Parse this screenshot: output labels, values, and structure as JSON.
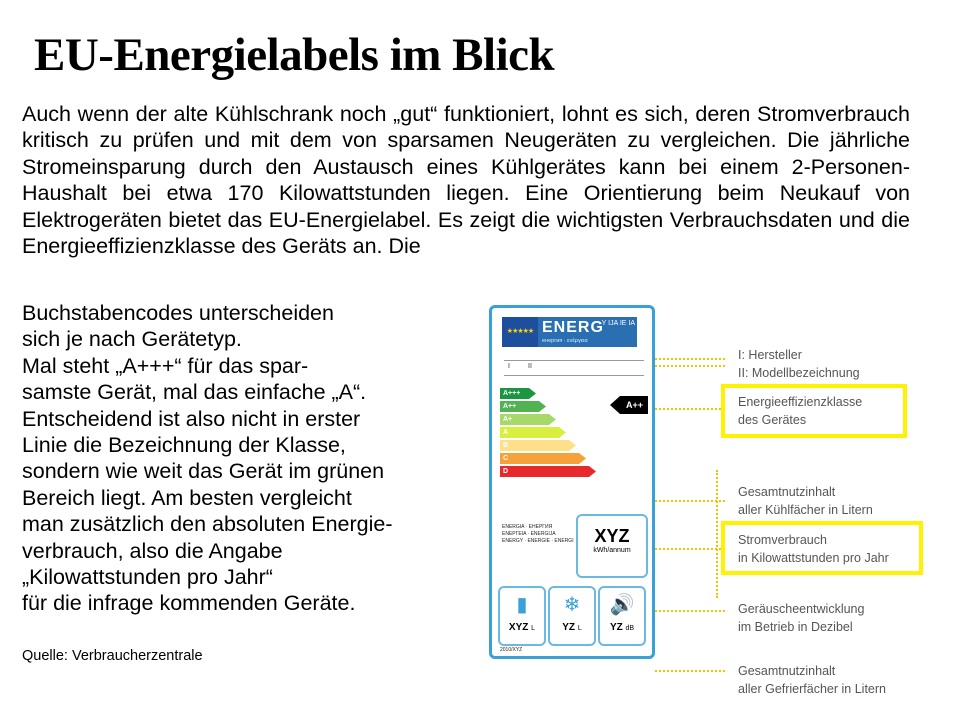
{
  "title": "EU-Energielabels im Blick",
  "paragraph_1": "Auch wenn der alte Kühlschrank noch „gut“ funktioniert, lohnt es sich, deren Stromverbrauch kritisch zu prüfen und mit dem von sparsamen Neugeräten zu vergleichen. Die jährliche Stromeinsparung durch den Austausch eines Kühlgerätes kann bei einem 2-Personen-Haushalt bei etwa 170 Kilowattstunden liegen. Eine Orientierung beim Neukauf von Elektrogeräten bietet das EU-Energielabel. Es zeigt die wichtigsten Verbrauchsdaten und die Energieeffizienzklasse des Geräts an. Die",
  "paragraph_2_lines": [
    "Buchstabencodes unterscheiden",
    "sich je nach Gerätetyp.",
    "Mal steht „A+++“ für das spar-",
    "samste Gerät, mal das einfache „A“.",
    "Entscheidend ist also nicht in erster",
    "Linie die Bezeichnung der Klasse,",
    "sondern wie weit das Gerät im grünen",
    "Bereich liegt.  Am besten vergleicht",
    "man zusätzlich den absoluten Energie-",
    "verbrauch, also die Angabe",
    "„Kilowattstunden pro Jahr“",
    "für die infrage kommenden Geräte."
  ],
  "source": "Quelle: Verbraucherzentrale",
  "label": {
    "brand": "ENERG",
    "brand_sub": "енергия · ενέργεια",
    "brand_marks": "Y IJA IE IA",
    "row_markers": [
      "I",
      "II"
    ],
    "classes": [
      {
        "name": "A+++",
        "color": "#1a9641"
      },
      {
        "name": "A++",
        "color": "#52b151"
      },
      {
        "name": "A+",
        "color": "#a6d96a"
      },
      {
        "name": "A",
        "color": "#d9ef3f"
      },
      {
        "name": "B",
        "color": "#fee08b"
      },
      {
        "name": "C",
        "color": "#f7a13b"
      },
      {
        "name": "D",
        "color": "#e8292b"
      }
    ],
    "rating": "A++",
    "languages": [
      "ENERGIA · ЕНЕРГИЯ",
      "ΕΝΕΡΓΕΙΑ · ENERGIJA",
      "ENERGY · ENERGIE · ENERGI"
    ],
    "annual_value": "XYZ",
    "annual_unit": "kWh/annum",
    "fridge_value": "XYZ",
    "fridge_unit": "L",
    "freezer_value": "YZ",
    "freezer_unit": "L",
    "noise_value": "YZ",
    "noise_unit": "dB",
    "footer": "2010/XYZ"
  },
  "callouts": [
    {
      "lines": [
        "I: Hersteller",
        "II: Modellbezeichnung"
      ]
    },
    {
      "lines": [
        "Energieeffizienzklasse",
        "des Gerätes"
      ]
    },
    {
      "lines": [
        "Gesamtnutzinhalt",
        "aller Kühlfächer in Litern"
      ]
    },
    {
      "lines": [
        "Stromverbrauch",
        "in Kilowattstunden pro Jahr"
      ]
    },
    {
      "lines": [
        "Geräuscheentwicklung",
        "im Betrieb in Dezibel"
      ]
    },
    {
      "lines": [
        "Gesamtnutzinhalt",
        "aller Gefrierfächer in Litern"
      ]
    }
  ],
  "accent_colors": {
    "label_border": "#3aa0d8",
    "leader": "#f5c200",
    "highlight": "#fff200"
  }
}
